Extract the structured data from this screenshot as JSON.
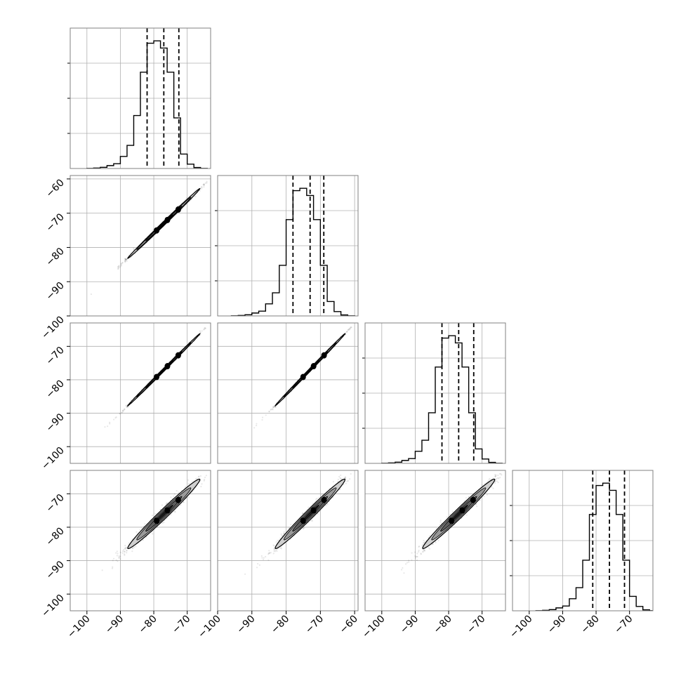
{
  "chart_data": {
    "type": "corner",
    "title": "",
    "n_params": 4,
    "grid": true,
    "panel_ranges": [
      [
        -105,
        -63
      ],
      [
        -100,
        -59
      ],
      [
        -105,
        -63
      ],
      [
        -105,
        -63
      ]
    ],
    "tick_values": [
      [
        -100,
        -90,
        -80,
        -70
      ],
      [
        -100,
        -90,
        -80,
        -70,
        -60
      ],
      [
        -100,
        -90,
        -80,
        -70
      ],
      [
        -100,
        -90,
        -80,
        -70
      ]
    ],
    "bottom_tick_labels": [
      [
        "−100",
        "−90",
        "−80",
        "−70"
      ],
      [
        "−100",
        "−90",
        "−80",
        "−70",
        "−60"
      ],
      [
        "−100",
        "−90",
        "−80",
        "−70"
      ],
      [
        "−100",
        "−90",
        "−80",
        "−70"
      ]
    ],
    "left_tick_labels": [
      [
        "−60",
        "−70",
        "−80",
        "−90",
        "−100"
      ],
      [
        "−70",
        "−80",
        "−90",
        "−100"
      ],
      [
        "−70",
        "−80",
        "−90",
        "−100"
      ]
    ],
    "histograms": [
      {
        "edges": [
          -100,
          -98,
          -96,
          -94,
          -92,
          -90,
          -88,
          -86,
          -84,
          -82,
          -80,
          -78,
          -76,
          -74,
          -72,
          -70,
          -68,
          -66,
          -64
        ],
        "counts": [
          0.3,
          1.0,
          2.5,
          6,
          10,
          25,
          48,
          110,
          200,
          260,
          265,
          250,
          200,
          105,
          30,
          9,
          2,
          0.3
        ],
        "quantiles": [
          -82.0,
          -77.0,
          -72.5
        ]
      },
      {
        "edges": [
          -96,
          -94,
          -92,
          -90,
          -88,
          -86,
          -84,
          -82,
          -80,
          -78,
          -76,
          -74,
          -72,
          -70,
          -68,
          -66,
          -64,
          -62,
          -60
        ],
        "counts": [
          0.3,
          1.0,
          2.5,
          6,
          10,
          25,
          48,
          105,
          200,
          260,
          265,
          250,
          200,
          105,
          30,
          9,
          2,
          0.3
        ],
        "quantiles": [
          -78.0,
          -73.0,
          -69.0
        ]
      },
      {
        "edges": [
          -100,
          -98,
          -96,
          -94,
          -92,
          -90,
          -88,
          -86,
          -84,
          -82,
          -80,
          -78,
          -76,
          -74,
          -72,
          -70,
          -68,
          -66,
          -64
        ],
        "counts": [
          0.3,
          1.0,
          2.5,
          6,
          10,
          25,
          48,
          105,
          200,
          260,
          265,
          250,
          200,
          105,
          30,
          9,
          2,
          0.3
        ],
        "quantiles": [
          -82.0,
          -77.0,
          -72.5
        ]
      },
      {
        "edges": [
          -98,
          -96,
          -94,
          -92,
          -90,
          -88,
          -86,
          -84,
          -82,
          -80,
          -78,
          -76,
          -74,
          -72,
          -70,
          -68,
          -66,
          -64,
          -62
        ],
        "counts": [
          0.3,
          1.0,
          2.5,
          6,
          10,
          25,
          48,
          105,
          200,
          260,
          265,
          250,
          200,
          105,
          30,
          9,
          2,
          0.3
        ],
        "quantiles": [
          -81.0,
          -76.0,
          -71.5
        ]
      }
    ],
    "scatter_2d": {
      "1,0": {
        "mean": [
          -77.0,
          -73.0
        ],
        "sd": [
          5.4,
          5.1
        ],
        "rho": 0.998,
        "sample_min": [
          -100,
          -98
        ],
        "sample_max": [
          -64,
          -60
        ]
      },
      "2,0": {
        "mean": [
          -77.0,
          -77.0
        ],
        "sd": [
          5.4,
          5.4
        ],
        "rho": 0.999,
        "sample_min": [
          -102,
          -102
        ],
        "sample_max": [
          -64,
          -64
        ]
      },
      "2,1": {
        "mean": [
          -73.0,
          -77.0
        ],
        "sd": [
          5.1,
          5.4
        ],
        "rho": 0.999,
        "sample_min": [
          -97,
          -102
        ],
        "sample_max": [
          -60,
          -64
        ]
      },
      "3,0": {
        "mean": [
          -77.0,
          -76.0
        ],
        "sd": [
          5.4,
          5.2
        ],
        "rho": 0.985,
        "sample_min": [
          -102,
          -102
        ],
        "sample_max": [
          -64,
          -64
        ]
      },
      "3,1": {
        "mean": [
          -73.0,
          -76.0
        ],
        "sd": [
          5.1,
          5.2
        ],
        "rho": 0.985,
        "sample_min": [
          -97,
          -102
        ],
        "sample_max": [
          -61,
          -64
        ]
      },
      "3,2": {
        "mean": [
          -77.0,
          -76.0
        ],
        "sd": [
          5.4,
          5.2
        ],
        "rho": 0.985,
        "sample_min": [
          -102,
          -102
        ],
        "sample_max": [
          -64,
          -64
        ]
      }
    },
    "density_levels": [
      0.5,
      1.0,
      1.5,
      2.0
    ],
    "colors": {
      "line": "#000000",
      "grid": "#b0b0b0",
      "points": "#000000"
    }
  }
}
